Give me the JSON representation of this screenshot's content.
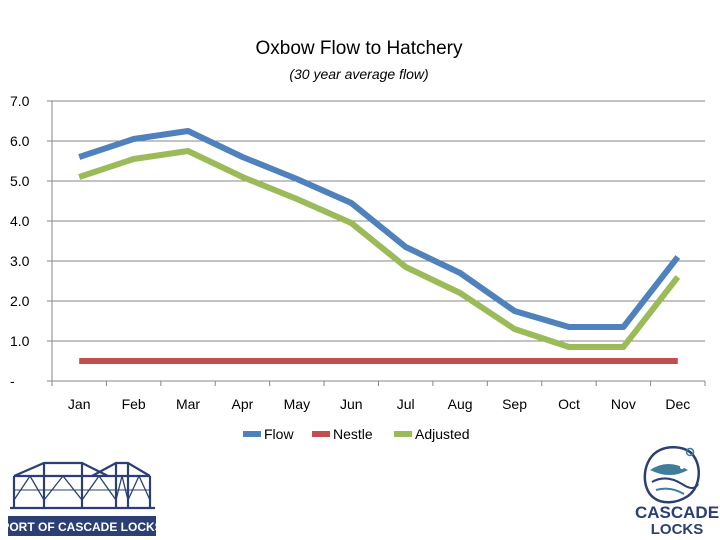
{
  "chart_data": {
    "type": "line",
    "title": "Oxbow Flow to Hatchery",
    "subtitle": "(30 year average flow)",
    "xlabel": "",
    "ylabel": "",
    "categories": [
      "Jan",
      "Feb",
      "Mar",
      "Apr",
      "May",
      "Jun",
      "Jul",
      "Aug",
      "Sep",
      "Oct",
      "Nov",
      "Dec"
    ],
    "ylim": [
      0,
      7
    ],
    "yticks": [
      {
        "value": 7,
        "label": "7.0"
      },
      {
        "value": 6,
        "label": "6.0"
      },
      {
        "value": 5,
        "label": "5.0"
      },
      {
        "value": 4,
        "label": "4.0"
      },
      {
        "value": 3,
        "label": "3.0"
      },
      {
        "value": 2,
        "label": "2.0"
      },
      {
        "value": 1,
        "label": "1.0"
      },
      {
        "value": 0,
        "label": "-"
      }
    ],
    "grid": true,
    "legend_position": "bottom",
    "series": [
      {
        "name": "Flow",
        "color": "#4F81BD",
        "values": [
          5.6,
          6.05,
          6.25,
          5.6,
          5.05,
          4.45,
          3.35,
          2.7,
          1.75,
          1.35,
          1.35,
          3.1
        ]
      },
      {
        "name": "Nestle",
        "color": "#C0504D",
        "values": [
          0.5,
          0.5,
          0.5,
          0.5,
          0.5,
          0.5,
          0.5,
          0.5,
          0.5,
          0.5,
          0.5,
          0.5
        ]
      },
      {
        "name": "Adjusted",
        "color": "#9BBB59",
        "values": [
          5.1,
          5.55,
          5.75,
          5.1,
          4.55,
          3.95,
          2.85,
          2.2,
          1.3,
          0.85,
          0.85,
          2.6
        ]
      }
    ]
  },
  "logos": {
    "port_text": "PORT OF CASCADE LOCKS",
    "cascade_line1": "CASCADE",
    "cascade_line2": "LOCKS",
    "navy": "#2B3F72",
    "teal": "#3E7E9A"
  }
}
